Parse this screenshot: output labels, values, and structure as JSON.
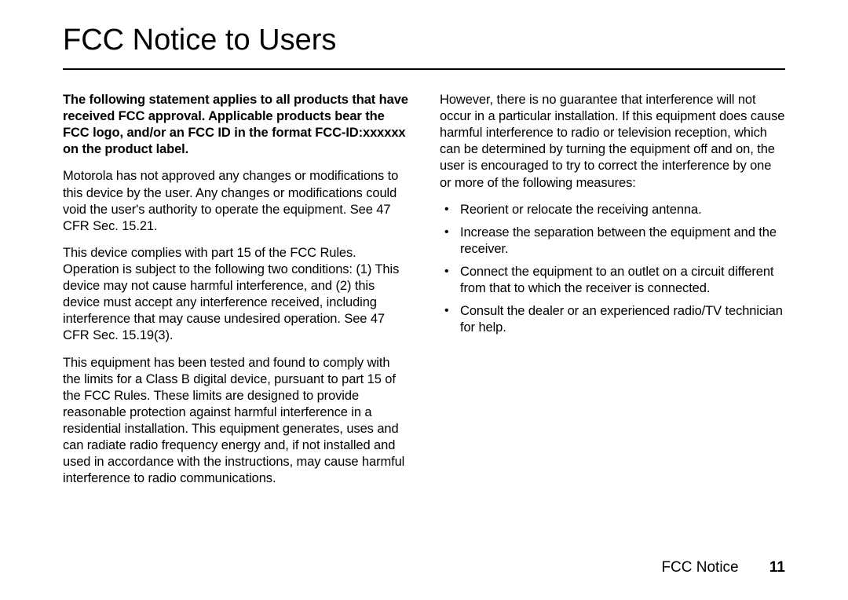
{
  "title": "FCC Notice to Users",
  "left": {
    "p1": "The following statement applies to all products that have received FCC approval. Applicable products bear the FCC logo, and/or an FCC ID in the format FCC-ID:xxxxxx on the product label.",
    "p2": "Motorola has not approved any changes or modifications to this device by the user. Any changes or modifications could void the user's authority to operate the equipment. See 47 CFR Sec. 15.21.",
    "p3": "This device complies with part 15 of the FCC Rules. Operation is subject to the following two conditions: (1) This device may not cause harmful interference, and (2) this device must accept any interference received, including interference that may cause undesired operation. See 47 CFR Sec. 15.19(3).",
    "p4": "This equipment has been tested and found to comply with the limits for a Class B digital device, pursuant to part 15 of the FCC Rules. These limits are designed to provide reasonable protection against harmful interference in a residential installation. This equipment generates, uses and can radiate radio frequency energy and, if not installed and used in accordance with the instructions, may cause harmful interference to radio communications."
  },
  "right": {
    "p1": "However, there is no guarantee that interference will not occur in a particular installation. If this equipment does cause harmful interference to radio or television reception, which can be determined by turning the equipment off and on, the user is encouraged to try to correct the interference by one or more of the following measures:",
    "bullets": [
      "Reorient or relocate the receiving antenna.",
      "Increase the separation between the equipment and the receiver.",
      "Connect the equipment to an outlet on a circuit different from that to which the receiver is connected.",
      "Consult the dealer or an experienced radio/TV technician for help."
    ]
  },
  "footer": {
    "label": "FCC Notice",
    "page": "11"
  },
  "style": {
    "title_fontsize": 38,
    "body_fontsize": 16.5,
    "footer_fontsize": 19,
    "text_color": "#000000",
    "background_color": "#ffffff",
    "rule_color": "#000000"
  }
}
